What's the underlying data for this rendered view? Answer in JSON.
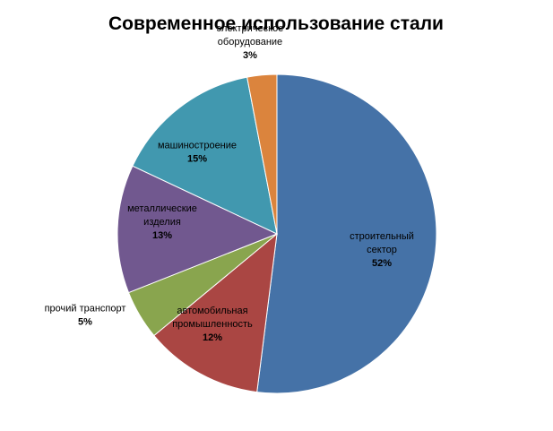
{
  "chart_data": {
    "type": "pie",
    "title": "Современное использование стали",
    "start": "12 o'clock",
    "direction": "clockwise",
    "slices": [
      {
        "label_lines": [
          "строительный",
          "сектор"
        ],
        "percent_label": "52%",
        "value": 52,
        "color": "#4572A7"
      },
      {
        "label_lines": [
          "автомобильная",
          "промышленность"
        ],
        "percent_label": "12%",
        "value": 12,
        "color": "#AA4643"
      },
      {
        "label_lines": [
          "прочий  транспорт"
        ],
        "percent_label": "5%",
        "value": 5,
        "color": "#89A54E"
      },
      {
        "label_lines": [
          "металлические",
          "изделия"
        ],
        "percent_label": "13%",
        "value": 13,
        "color": "#71588F"
      },
      {
        "label_lines": [
          "машиностроение"
        ],
        "percent_label": "15%",
        "value": 15,
        "color": "#4198AF"
      },
      {
        "label_lines": [
          "электрическое",
          "оборудование"
        ],
        "percent_label": "3%",
        "value": 3,
        "color": "#DB843D"
      }
    ]
  }
}
